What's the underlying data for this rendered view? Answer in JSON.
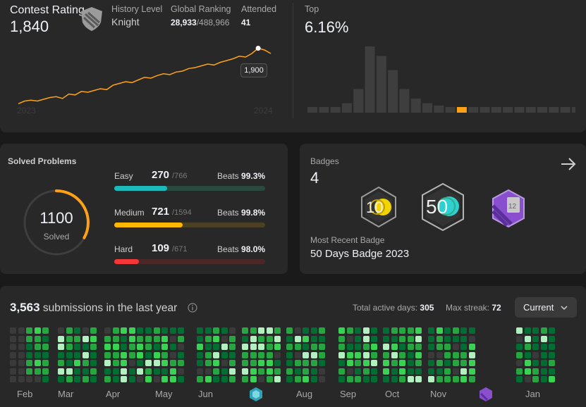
{
  "contest": {
    "rating_label": "Contest Rating",
    "rating_value": "1,840",
    "level_label": "History Level",
    "level_value": "Knight",
    "ranking_label": "Global Ranking",
    "ranking_value": "28,933",
    "ranking_total": "/488,966",
    "attended_label": "Attended",
    "attended_value": "41",
    "top_label": "Top",
    "top_value": "6.16%",
    "tooltip_value": "1,900",
    "year_start": "2023",
    "year_end": "2024"
  },
  "chart_data": [
    {
      "type": "line",
      "title": "",
      "x": [
        0,
        1,
        2,
        3,
        4,
        5,
        6,
        7,
        8,
        9,
        10,
        11,
        12,
        13,
        14,
        15,
        16,
        17,
        18,
        19,
        20,
        21,
        22,
        23,
        24,
        25,
        26,
        27,
        28,
        29,
        30,
        31,
        32,
        33,
        34,
        35,
        36,
        37,
        38,
        39,
        40
      ],
      "series": [
        {
          "values": [
            1585,
            1600,
            1605,
            1600,
            1610,
            1620,
            1625,
            1615,
            1640,
            1635,
            1655,
            1650,
            1660,
            1670,
            1665,
            1690,
            1700,
            1710,
            1705,
            1720,
            1735,
            1730,
            1745,
            1755,
            1750,
            1765,
            1770,
            1785,
            1790,
            1800,
            1810,
            1805,
            1820,
            1830,
            1840,
            1855,
            1850,
            1870,
            1900,
            1890,
            1870
          ]
        }
      ],
      "highlight_value": 1900,
      "xticks": [
        "2023",
        "2024"
      ],
      "ylim": [
        1550,
        1950
      ]
    },
    {
      "type": "bar",
      "title": "",
      "values": [
        1,
        1,
        1,
        2,
        5,
        14,
        12,
        9,
        5,
        3,
        2,
        1.5,
        1,
        1,
        1,
        1,
        1,
        1,
        1,
        1,
        1,
        1,
        1,
        1,
        1,
        1,
        1
      ],
      "highlight_index": 13,
      "color": "#3e3e3e",
      "highlight_color": "#ffa116"
    }
  ],
  "solved": {
    "title": "Solved Problems",
    "total": "1100",
    "total_label": "Solved",
    "rows": [
      {
        "name": "Easy",
        "count": "270",
        "total": "/766",
        "beats_label": "Beats",
        "beats": "99.3%",
        "fraction": 0.352,
        "color": "#1cbaba",
        "track": "#2a4a40"
      },
      {
        "name": "Medium",
        "count": "721",
        "total": "/1594",
        "beats_label": "Beats",
        "beats": "99.8%",
        "fraction": 0.452,
        "color": "#ffb700",
        "track": "#4a4024"
      },
      {
        "name": "Hard",
        "count": "109",
        "total": "/671",
        "beats_label": "Beats",
        "beats": "98.0%",
        "fraction": 0.162,
        "color": "#f63737",
        "track": "#4a2828"
      }
    ]
  },
  "badges": {
    "title": "Badges",
    "count": "4",
    "recent_label": "Most Recent Badge",
    "recent_name": "50 Days Badge 2023",
    "items": [
      {
        "name": "100-days-badge",
        "text": "10"
      },
      {
        "name": "50-days-badge",
        "text": "50"
      },
      {
        "name": "monthly-badge",
        "text": "12"
      }
    ]
  },
  "submissions": {
    "count": "3,563",
    "label": "submissions in the last year",
    "active_label": "Total active days:",
    "active_value": "305",
    "streak_label": "Max streak:",
    "streak_value": "72",
    "dropdown": "Current",
    "months": [
      "Feb",
      "Mar",
      "Apr",
      "May",
      "Jun",
      "Aug",
      "Sep",
      "Oct",
      "Nov",
      "Jan"
    ]
  },
  "colors": {
    "accent": "#ffa116",
    "green_dark": "#006d32",
    "green": "#26a641",
    "green_light": "#39d353",
    "green_pale": "#b3f0c0"
  }
}
